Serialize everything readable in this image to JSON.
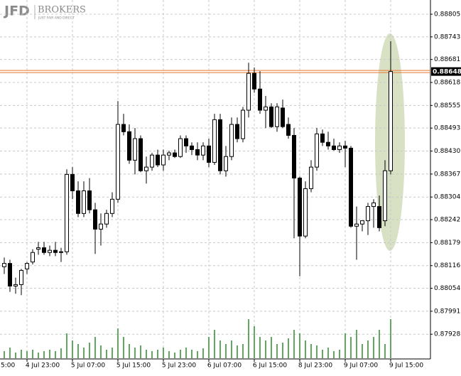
{
  "logo": {
    "brand": "JFD",
    "name": "BROKERS",
    "tagline": "JUST FAIR AND DIRECT"
  },
  "chart_data": {
    "type": "candlestick",
    "open": [
      0.88113,
      0.88122,
      0.8806,
      0.88064,
      0.88107,
      0.88126,
      0.88161,
      0.88165,
      0.88152,
      0.88158,
      0.88152,
      0.88154,
      0.88366,
      0.88321,
      0.88259,
      0.88321,
      0.88269,
      0.88216,
      0.8823,
      0.88259,
      0.88298,
      0.88503,
      0.88483,
      0.88405,
      0.88464,
      0.88376,
      0.88386,
      0.88419,
      0.88392,
      0.88419,
      0.88425,
      0.88415,
      0.88464,
      0.88444,
      0.88434,
      0.88419,
      0.88444,
      0.88399,
      0.88516,
      0.88376,
      0.88415,
      0.88503,
      0.88464,
      0.88542,
      0.88643,
      0.886,
      0.88542,
      0.88551,
      0.88497,
      0.88548,
      0.88503,
      0.88473,
      0.88356,
      0.88197,
      0.88327,
      0.88386,
      0.88477,
      0.88454,
      0.88444,
      0.88434,
      0.88444,
      0.88438,
      0.88224,
      0.8823,
      0.88239,
      0.88278,
      0.88278,
      0.88239,
      0.88376
    ],
    "high": [
      0.88138,
      0.88132,
      0.88083,
      0.88107,
      0.88126,
      0.88161,
      0.88181,
      0.88181,
      0.88171,
      0.88181,
      0.88165,
      0.8838,
      0.88386,
      0.88347,
      0.88347,
      0.88356,
      0.88288,
      0.88259,
      0.88269,
      0.88317,
      0.88567,
      0.88532,
      0.88503,
      0.88493,
      0.88473,
      0.88415,
      0.88425,
      0.88434,
      0.88434,
      0.88431,
      0.88434,
      0.88473,
      0.88473,
      0.88454,
      0.88454,
      0.88454,
      0.88464,
      0.88532,
      0.88532,
      0.88444,
      0.88522,
      0.88522,
      0.88551,
      0.88672,
      0.88659,
      0.88649,
      0.88581,
      0.88561,
      0.88561,
      0.88571,
      0.88522,
      0.88493,
      0.8836,
      0.88347,
      0.88405,
      0.88493,
      0.88489,
      0.88483,
      0.88464,
      0.88454,
      0.88458,
      0.88444,
      0.88278,
      0.88239,
      0.88288,
      0.88298,
      0.88308,
      0.88405,
      0.88731
    ],
    "low": [
      0.88093,
      0.88044,
      0.88039,
      0.88035,
      0.88093,
      0.88119,
      0.88146,
      0.88146,
      0.88142,
      0.88142,
      0.88126,
      0.88146,
      0.88298,
      0.88249,
      0.88249,
      0.88259,
      0.88148,
      0.88171,
      0.8822,
      0.88249,
      0.88288,
      0.88473,
      0.88395,
      0.88366,
      0.88372,
      0.88341,
      0.88376,
      0.88386,
      0.88376,
      0.88405,
      0.88411,
      0.88411,
      0.88425,
      0.88419,
      0.88405,
      0.88405,
      0.88386,
      0.88392,
      0.88366,
      0.8836,
      0.88405,
      0.88454,
      0.88454,
      0.88522,
      0.8859,
      0.88532,
      0.88493,
      0.88493,
      0.88483,
      0.88493,
      0.88464,
      0.88191,
      0.88087,
      0.88191,
      0.88317,
      0.88376,
      0.88444,
      0.88434,
      0.88431,
      0.88425,
      0.88386,
      0.8822,
      0.88132,
      0.8821,
      0.882,
      0.8822,
      0.8821,
      0.88224,
      0.88366
    ],
    "close": [
      0.88122,
      0.8806,
      0.88064,
      0.88103,
      0.88122,
      0.88152,
      0.88165,
      0.88152,
      0.88158,
      0.88152,
      0.88154,
      0.88366,
      0.88321,
      0.88259,
      0.88321,
      0.88269,
      0.88216,
      0.8823,
      0.88259,
      0.88298,
      0.88503,
      0.88483,
      0.88405,
      0.88464,
      0.88376,
      0.88386,
      0.88419,
      0.88392,
      0.88419,
      0.88425,
      0.88415,
      0.88464,
      0.88444,
      0.88434,
      0.88419,
      0.88444,
      0.88399,
      0.88516,
      0.88376,
      0.88415,
      0.88503,
      0.88464,
      0.88542,
      0.88643,
      0.886,
      0.88542,
      0.88551,
      0.88497,
      0.88551,
      0.88497,
      0.88473,
      0.88356,
      0.88197,
      0.88327,
      0.88386,
      0.88477,
      0.88454,
      0.88444,
      0.88434,
      0.88444,
      0.88438,
      0.88224,
      0.8823,
      0.88239,
      0.88278,
      0.88288,
      0.8822,
      0.88376,
      0.88648
    ],
    "volume": [
      10,
      15,
      8,
      12,
      10,
      12,
      8,
      10,
      12,
      10,
      14,
      35,
      25,
      20,
      15,
      22,
      30,
      18,
      12,
      15,
      42,
      30,
      20,
      15,
      18,
      12,
      10,
      12,
      15,
      10,
      8,
      12,
      15,
      12,
      10,
      14,
      30,
      40,
      25,
      20,
      25,
      18,
      20,
      55,
      45,
      30,
      25,
      30,
      20,
      22,
      28,
      40,
      35,
      25,
      20,
      18,
      12,
      15,
      10,
      12,
      35,
      30,
      40,
      20,
      25,
      30,
      40,
      20,
      55
    ],
    "volume_color": "#2e8b2e",
    "up_color": "#ffffff",
    "down_color": "#000000",
    "current_price": 0.88648,
    "current_price_color": "#e8772e",
    "ylim": [
      0.8787,
      0.88844
    ],
    "yticks": [
      0.88805,
      0.88743,
      0.88681,
      0.88618,
      0.88555,
      0.88493,
      {
        "value": 0.8843,
        "label": "0.88430"
      },
      0.88367,
      0.88304,
      0.88242,
      0.88179,
      0.88116,
      0.88054,
      0.87991,
      0.87928
    ],
    "xtick_labels": [
      "5:00",
      "4 Jul 23:00",
      "5 Jul 07:00",
      "5 Jul 15:00",
      "5 Jul 23:00",
      "6 Jul 07:00",
      "6 Jul 15:00",
      "8 Jul 23:00",
      "9 Jul 07:00",
      "9 Jul 15:00"
    ],
    "grid": true
  }
}
